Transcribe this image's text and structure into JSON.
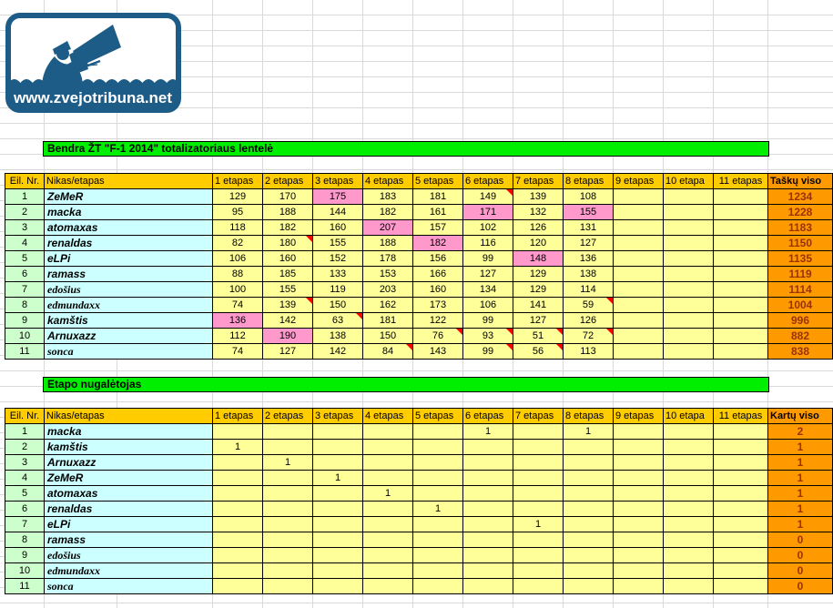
{
  "logo": {
    "url": "www.zvejotribuna.net"
  },
  "colors": {
    "accent_blue": "#1d5c87",
    "bar_green": "#00ee00",
    "header_gold": "#ffcc00",
    "total_orange": "#ff9900",
    "cell_yellow": "#ffff99",
    "highlight_pink": "#ff99cc",
    "nr_green": "#ccffcc",
    "nick_cyan": "#ccffff",
    "total_text": "#993300",
    "comment_red": "#ff0000"
  },
  "etapas_headers": [
    "1 etapas",
    "2 etapas",
    "3 etapas",
    "4 etapas",
    "5 etapas",
    "6 etapas",
    "7 etapas",
    "8 etapas",
    "9 etapas",
    "10 etapa",
    "11 etapas"
  ],
  "table1": {
    "title": "Bendra ŽT \"F-1 2014\" totalizatoriaus lentelė",
    "col_nr": "Eil. Nr.",
    "col_nick": "Nikas/etapas",
    "col_total": "Taškų viso",
    "rows": [
      {
        "nr": "1",
        "nick": "ZeMeR",
        "serif": false,
        "values": [
          "129",
          "170",
          "175",
          "183",
          "181",
          "149",
          "139",
          "108",
          "",
          "",
          ""
        ],
        "total": "1234",
        "pink": [
          2
        ],
        "notes": [
          5
        ]
      },
      {
        "nr": "2",
        "nick": "macka",
        "serif": false,
        "values": [
          "95",
          "188",
          "144",
          "182",
          "161",
          "171",
          "132",
          "155",
          "",
          "",
          ""
        ],
        "total": "1228",
        "pink": [
          5,
          7
        ],
        "notes": []
      },
      {
        "nr": "3",
        "nick": "atomaxas",
        "serif": false,
        "values": [
          "118",
          "182",
          "160",
          "207",
          "157",
          "102",
          "126",
          "131",
          "",
          "",
          ""
        ],
        "total": "1183",
        "pink": [
          3
        ],
        "notes": []
      },
      {
        "nr": "4",
        "nick": "renaldas",
        "serif": false,
        "values": [
          "82",
          "180",
          "155",
          "188",
          "182",
          "116",
          "120",
          "127",
          "",
          "",
          ""
        ],
        "total": "1150",
        "pink": [
          4
        ],
        "notes": [
          1
        ]
      },
      {
        "nr": "5",
        "nick": "eLPi",
        "serif": false,
        "values": [
          "106",
          "160",
          "152",
          "178",
          "156",
          "99",
          "148",
          "136",
          "",
          "",
          ""
        ],
        "total": "1135",
        "pink": [
          6
        ],
        "notes": []
      },
      {
        "nr": "6",
        "nick": "ramass",
        "serif": false,
        "values": [
          "88",
          "185",
          "133",
          "153",
          "166",
          "127",
          "129",
          "138",
          "",
          "",
          ""
        ],
        "total": "1119",
        "pink": [],
        "notes": []
      },
      {
        "nr": "7",
        "nick": "edošius",
        "serif": true,
        "values": [
          "100",
          "155",
          "119",
          "203",
          "160",
          "134",
          "129",
          "114",
          "",
          "",
          ""
        ],
        "total": "1114",
        "pink": [],
        "notes": []
      },
      {
        "nr": "8",
        "nick": "edmundaxx",
        "serif": true,
        "values": [
          "74",
          "139",
          "150",
          "162",
          "173",
          "106",
          "141",
          "59",
          "",
          "",
          ""
        ],
        "total": "1004",
        "pink": [],
        "notes": [
          1,
          7
        ]
      },
      {
        "nr": "9",
        "nick": "kamštis",
        "serif": false,
        "values": [
          "136",
          "142",
          "63",
          "181",
          "122",
          "99",
          "127",
          "126",
          "",
          "",
          ""
        ],
        "total": "996",
        "pink": [
          0
        ],
        "notes": [
          2
        ]
      },
      {
        "nr": "10",
        "nick": "Arnuxazz",
        "serif": false,
        "values": [
          "112",
          "190",
          "138",
          "150",
          "76",
          "93",
          "51",
          "72",
          "",
          "",
          ""
        ],
        "total": "882",
        "pink": [
          1
        ],
        "notes": [
          4,
          5,
          6,
          7
        ]
      },
      {
        "nr": "11",
        "nick": "sonca",
        "serif": true,
        "values": [
          "74",
          "127",
          "142",
          "84",
          "143",
          "99",
          "56",
          "113",
          "",
          "",
          ""
        ],
        "total": "838",
        "pink": [],
        "notes": [
          3,
          5,
          6
        ]
      }
    ]
  },
  "table2": {
    "title": "Etapo nugalėtojas",
    "col_nr": "Eil. Nr.",
    "col_nick": "Nikas/etapas",
    "col_total": "Kartų viso",
    "rows": [
      {
        "nr": "1",
        "nick": "macka",
        "serif": false,
        "values": [
          "",
          "",
          "",
          "",
          "",
          "1",
          "",
          "1",
          "",
          "",
          ""
        ],
        "total": "2",
        "pink": [],
        "notes": []
      },
      {
        "nr": "2",
        "nick": "kamštis",
        "serif": false,
        "values": [
          "1",
          "",
          "",
          "",
          "",
          "",
          "",
          "",
          "",
          "",
          ""
        ],
        "total": "1",
        "pink": [],
        "notes": []
      },
      {
        "nr": "3",
        "nick": "Arnuxazz",
        "serif": false,
        "values": [
          "",
          "1",
          "",
          "",
          "",
          "",
          "",
          "",
          "",
          "",
          ""
        ],
        "total": "1",
        "pink": [],
        "notes": []
      },
      {
        "nr": "4",
        "nick": "ZeMeR",
        "serif": false,
        "values": [
          "",
          "",
          "1",
          "",
          "",
          "",
          "",
          "",
          "",
          "",
          ""
        ],
        "total": "1",
        "pink": [],
        "notes": []
      },
      {
        "nr": "5",
        "nick": "atomaxas",
        "serif": false,
        "values": [
          "",
          "",
          "",
          "1",
          "",
          "",
          "",
          "",
          "",
          "",
          ""
        ],
        "total": "1",
        "pink": [],
        "notes": []
      },
      {
        "nr": "6",
        "nick": "renaldas",
        "serif": false,
        "values": [
          "",
          "",
          "",
          "",
          "1",
          "",
          "",
          "",
          "",
          "",
          ""
        ],
        "total": "1",
        "pink": [],
        "notes": []
      },
      {
        "nr": "7",
        "nick": "eLPi",
        "serif": false,
        "values": [
          "",
          "",
          "",
          "",
          "",
          "",
          "1",
          "",
          "",
          "",
          ""
        ],
        "total": "1",
        "pink": [],
        "notes": []
      },
      {
        "nr": "8",
        "nick": "ramass",
        "serif": false,
        "values": [
          "",
          "",
          "",
          "",
          "",
          "",
          "",
          "",
          "",
          "",
          ""
        ],
        "total": "0",
        "pink": [],
        "notes": []
      },
      {
        "nr": "9",
        "nick": "edošius",
        "serif": true,
        "values": [
          "",
          "",
          "",
          "",
          "",
          "",
          "",
          "",
          "",
          "",
          ""
        ],
        "total": "0",
        "pink": [],
        "notes": []
      },
      {
        "nr": "10",
        "nick": "edmundaxx",
        "serif": true,
        "values": [
          "",
          "",
          "",
          "",
          "",
          "",
          "",
          "",
          "",
          "",
          ""
        ],
        "total": "0",
        "pink": [],
        "notes": []
      },
      {
        "nr": "11",
        "nick": "sonca",
        "serif": true,
        "values": [
          "",
          "",
          "",
          "",
          "",
          "",
          "",
          "",
          "",
          "",
          ""
        ],
        "total": "0",
        "pink": [],
        "notes": []
      }
    ]
  }
}
